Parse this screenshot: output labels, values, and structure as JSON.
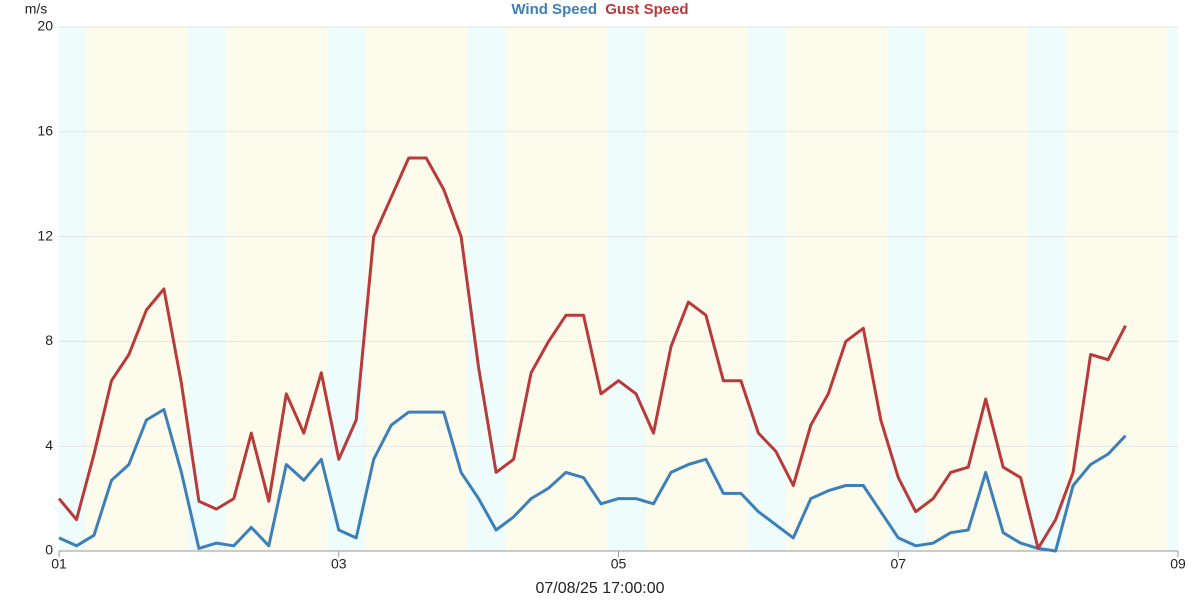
{
  "chart_data": {
    "type": "line",
    "ylabel": "m/s",
    "xlabel": "07/08/25 17:00:00",
    "x": [
      1,
      1.125,
      1.25,
      1.375,
      1.5,
      1.625,
      1.75,
      1.875,
      2,
      2.125,
      2.25,
      2.375,
      2.5,
      2.625,
      2.75,
      2.875,
      3,
      3.125,
      3.25,
      3.375,
      3.5,
      3.625,
      3.75,
      3.875,
      4,
      4.125,
      4.25,
      4.375,
      4.5,
      4.625,
      4.75,
      4.875,
      5,
      5.125,
      5.25,
      5.375,
      5.5,
      5.625,
      5.75,
      5.875,
      6,
      6.125,
      6.25,
      6.375,
      6.5,
      6.625,
      6.75,
      6.875,
      7,
      7.125,
      7.25,
      7.375,
      7.5,
      7.625,
      7.75,
      7.875,
      8,
      8.125,
      8.25,
      8.375,
      8.5,
      8.625
    ],
    "series": [
      {
        "name": "Wind Speed",
        "color": "#3d7fb8",
        "values": [
          0.5,
          0.2,
          0.6,
          2.7,
          3.3,
          5.0,
          5.4,
          3.0,
          0.1,
          0.3,
          0.2,
          0.9,
          0.2,
          3.3,
          2.7,
          3.5,
          0.8,
          0.5,
          3.5,
          4.8,
          5.3,
          5.3,
          5.3,
          3.0,
          2.0,
          0.8,
          1.3,
          2.0,
          2.4,
          3.0,
          2.8,
          1.8,
          2.0,
          2.0,
          1.8,
          3.0,
          3.3,
          3.5,
          2.2,
          2.2,
          1.5,
          1.0,
          0.5,
          2.0,
          2.3,
          2.5,
          2.5,
          1.5,
          0.5,
          0.2,
          0.3,
          0.7,
          0.8,
          3.0,
          0.7,
          0.3,
          0.1,
          0,
          2.5,
          3.3,
          3.7,
          4.4
        ]
      },
      {
        "name": "Gust Speed",
        "color": "#b83a3a",
        "values": [
          2.0,
          1.2,
          3.7,
          6.5,
          7.5,
          9.2,
          10.0,
          6.4,
          1.9,
          1.6,
          2.0,
          4.5,
          1.9,
          6.0,
          4.5,
          6.8,
          3.5,
          5.0,
          12.0,
          13.5,
          15.0,
          15.0,
          13.8,
          12.0,
          7.0,
          3.0,
          3.5,
          6.8,
          8.0,
          9.0,
          9.0,
          6.0,
          6.5,
          6.0,
          4.5,
          7.8,
          9.5,
          9.0,
          6.5,
          6.5,
          4.5,
          3.8,
          2.5,
          4.8,
          6.0,
          8.0,
          8.5,
          5.0,
          2.8,
          1.5,
          2.0,
          3.0,
          3.2,
          5.8,
          3.2,
          2.8,
          0.1,
          1.2,
          3.0,
          7.5,
          7.3,
          8.6
        ]
      }
    ],
    "xlim": [
      1,
      9
    ],
    "xticks": [
      {
        "value": 1,
        "label": "01"
      },
      {
        "value": 3,
        "label": "03"
      },
      {
        "value": 5,
        "label": "05"
      },
      {
        "value": 7,
        "label": "07"
      },
      {
        "value": 9,
        "label": "09"
      }
    ],
    "ylim": [
      0,
      20
    ],
    "yticks": [
      0,
      4,
      8,
      12,
      16,
      20
    ],
    "grid": true
  }
}
